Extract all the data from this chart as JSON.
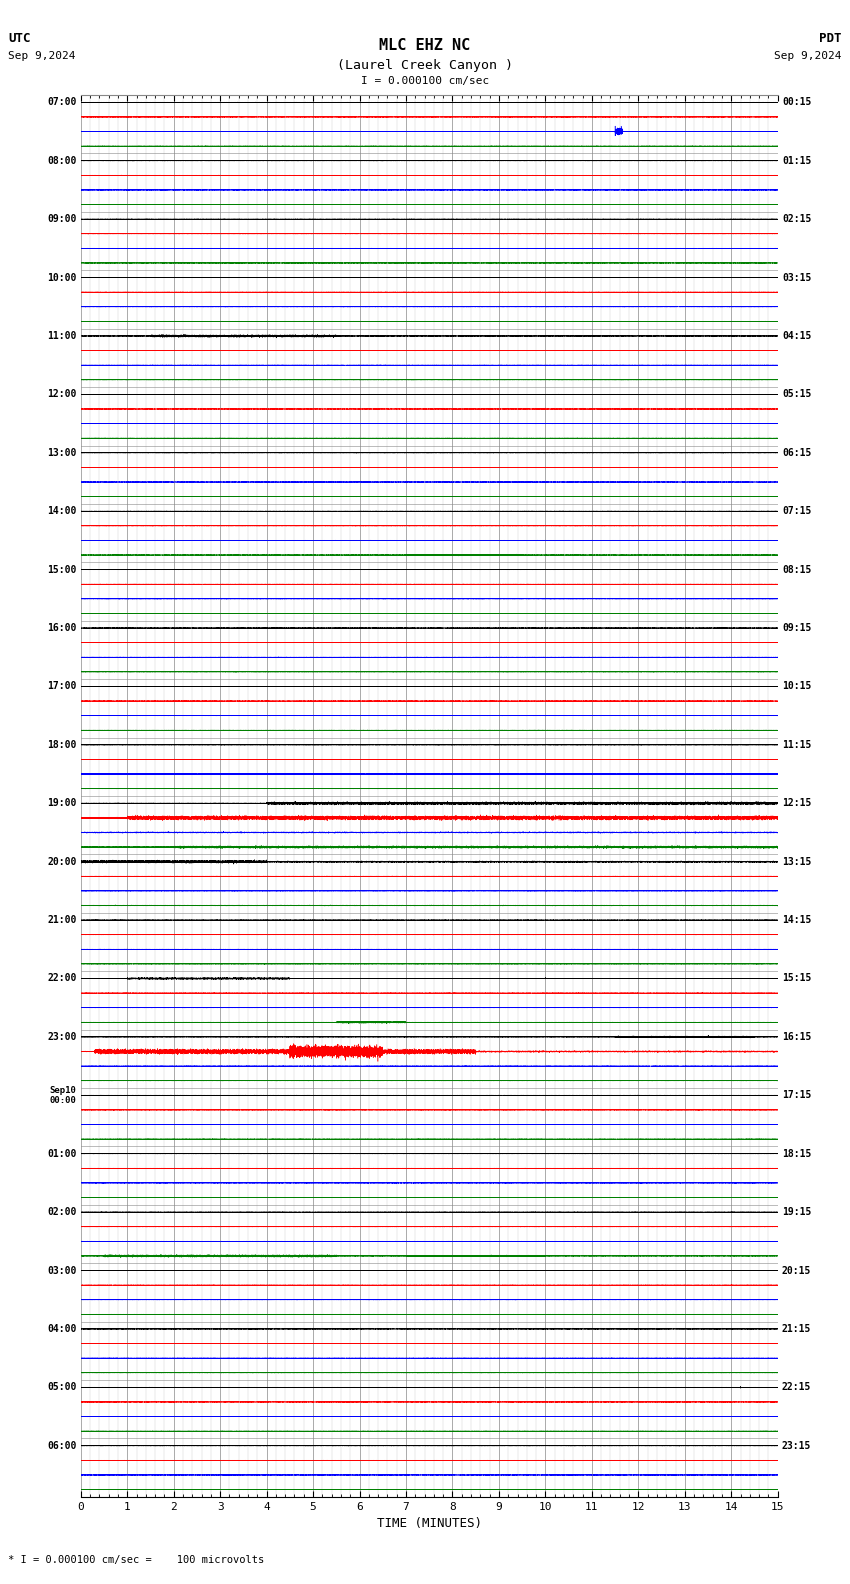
{
  "title_line1": "MLC EHZ NC",
  "title_line2": "(Laurel Creek Canyon )",
  "scale_text": "I = 0.000100 cm/sec",
  "utc_label": "UTC",
  "pdt_label": "PDT",
  "date_left": "Sep 9,2024",
  "date_right": "Sep 9,2024",
  "bottom_label": "TIME (MINUTES)",
  "bottom_note": "* I = 0.000100 cm/sec =    100 microvolts",
  "bg_color": "#ffffff",
  "grid_color": "#888888",
  "trace_colors": [
    "#000000",
    "#ff0000",
    "#0000ff",
    "#008000"
  ],
  "fig_width": 8.5,
  "fig_height": 15.84,
  "left_times_utc": [
    "07:00",
    "08:00",
    "09:00",
    "10:00",
    "11:00",
    "12:00",
    "13:00",
    "14:00",
    "15:00",
    "16:00",
    "17:00",
    "18:00",
    "19:00",
    "20:00",
    "21:00",
    "22:00",
    "23:00",
    "Sep10\n00:00",
    "01:00",
    "02:00",
    "03:00",
    "04:00",
    "05:00",
    "06:00"
  ],
  "right_times_pdt": [
    "00:15",
    "01:15",
    "02:15",
    "03:15",
    "04:15",
    "05:15",
    "06:15",
    "07:15",
    "08:15",
    "09:15",
    "10:15",
    "11:15",
    "12:15",
    "13:15",
    "14:15",
    "15:15",
    "16:15",
    "17:15",
    "18:15",
    "19:15",
    "20:15",
    "21:15",
    "22:15",
    "23:15"
  ],
  "num_rows": 24,
  "traces_per_row": 4,
  "minutes": 15,
  "sample_rate": 40
}
